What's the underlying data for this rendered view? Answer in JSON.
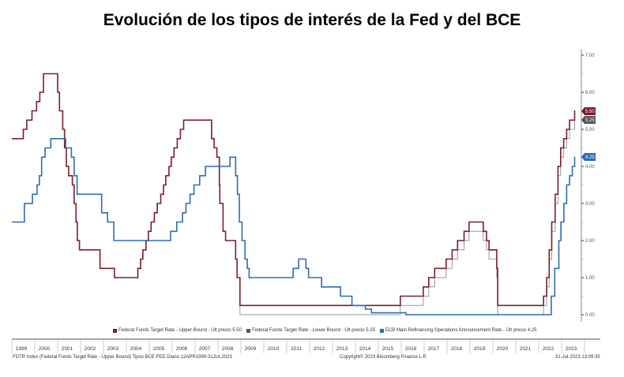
{
  "chart_data": {
    "type": "line",
    "title": "Evolución de los tipos de interés de la Fed y del BCE",
    "xlabel": "",
    "ylabel": "",
    "xlim": [
      1999.0,
      2023.6
    ],
    "ylim": [
      0,
      7
    ],
    "y_ticks": [
      "0.00",
      "1.00",
      "2.00",
      "3.00",
      "4.00",
      "5.00",
      "6.00",
      "7.00"
    ],
    "x_ticks": [
      "1999",
      "2000",
      "2001",
      "2002",
      "2003",
      "2004",
      "2005",
      "2006",
      "2007",
      "2008",
      "2009",
      "2010",
      "2011",
      "2012",
      "2013",
      "2014",
      "2015",
      "2016",
      "2017",
      "2018",
      "2019",
      "2020",
      "2021",
      "2022",
      "2023"
    ],
    "legend": [
      {
        "label": "Federal Funds Target Rate - Upper Bound - Últ precio 5.50",
        "color": "#7a1f2b"
      },
      {
        "label": "Federal Funds Target Rate - Lower Bound - Últ precio 5.25",
        "color": "#555555"
      },
      {
        "label": "ECB Main Refinancing Operations Announcement Rate - Últ precio 4.25",
        "color": "#2e6db4"
      }
    ],
    "last_values": [
      {
        "label": "5.50",
        "color": "#7a1f2b"
      },
      {
        "label": "5.25",
        "color": "#555555"
      },
      {
        "label": "4.25",
        "color": "#2e6db4"
      }
    ],
    "series": [
      {
        "name": "Federal Funds Target Rate - Upper Bound",
        "color": "#7a1f2b",
        "points": [
          [
            1999.0,
            4.75
          ],
          [
            1999.5,
            5.0
          ],
          [
            1999.65,
            5.25
          ],
          [
            1999.88,
            5.5
          ],
          [
            2000.08,
            5.75
          ],
          [
            2000.22,
            6.0
          ],
          [
            2000.38,
            6.5
          ],
          [
            2001.0,
            6.0
          ],
          [
            2001.08,
            5.5
          ],
          [
            2001.22,
            5.0
          ],
          [
            2001.3,
            4.5
          ],
          [
            2001.38,
            4.0
          ],
          [
            2001.48,
            3.75
          ],
          [
            2001.64,
            3.5
          ],
          [
            2001.72,
            3.0
          ],
          [
            2001.8,
            2.5
          ],
          [
            2001.86,
            2.0
          ],
          [
            2001.95,
            1.75
          ],
          [
            2002.85,
            1.25
          ],
          [
            2003.48,
            1.0
          ],
          [
            2004.5,
            1.25
          ],
          [
            2004.62,
            1.5
          ],
          [
            2004.72,
            1.75
          ],
          [
            2004.86,
            2.0
          ],
          [
            2004.96,
            2.25
          ],
          [
            2005.08,
            2.5
          ],
          [
            2005.22,
            2.75
          ],
          [
            2005.35,
            3.0
          ],
          [
            2005.5,
            3.25
          ],
          [
            2005.62,
            3.5
          ],
          [
            2005.72,
            3.75
          ],
          [
            2005.86,
            4.0
          ],
          [
            2005.96,
            4.25
          ],
          [
            2006.08,
            4.5
          ],
          [
            2006.22,
            4.75
          ],
          [
            2006.36,
            5.0
          ],
          [
            2006.5,
            5.25
          ],
          [
            2007.72,
            4.75
          ],
          [
            2007.83,
            4.5
          ],
          [
            2007.95,
            4.25
          ],
          [
            2008.06,
            3.5
          ],
          [
            2008.08,
            3.0
          ],
          [
            2008.22,
            2.25
          ],
          [
            2008.33,
            2.0
          ],
          [
            2008.77,
            1.5
          ],
          [
            2008.83,
            1.0
          ],
          [
            2008.96,
            0.25
          ],
          [
            2015.96,
            0.5
          ],
          [
            2016.96,
            0.75
          ],
          [
            2017.2,
            1.0
          ],
          [
            2017.46,
            1.25
          ],
          [
            2017.96,
            1.5
          ],
          [
            2018.22,
            1.75
          ],
          [
            2018.46,
            2.0
          ],
          [
            2018.74,
            2.25
          ],
          [
            2018.96,
            2.5
          ],
          [
            2019.58,
            2.25
          ],
          [
            2019.72,
            2.0
          ],
          [
            2019.83,
            1.75
          ],
          [
            2020.17,
            1.25
          ],
          [
            2020.21,
            0.25
          ],
          [
            2022.21,
            0.5
          ],
          [
            2022.35,
            1.0
          ],
          [
            2022.46,
            1.75
          ],
          [
            2022.57,
            2.5
          ],
          [
            2022.72,
            3.25
          ],
          [
            2022.84,
            4.0
          ],
          [
            2022.96,
            4.5
          ],
          [
            2023.09,
            4.75
          ],
          [
            2023.22,
            5.0
          ],
          [
            2023.35,
            5.25
          ],
          [
            2023.57,
            5.5
          ],
          [
            2023.58,
            5.5
          ]
        ]
      },
      {
        "name": "Federal Funds Target Rate - Lower Bound",
        "color": "#999999",
        "points": [
          [
            2008.96,
            0.0
          ],
          [
            2015.96,
            0.25
          ],
          [
            2016.96,
            0.5
          ],
          [
            2017.2,
            0.75
          ],
          [
            2017.46,
            1.0
          ],
          [
            2017.96,
            1.25
          ],
          [
            2018.22,
            1.5
          ],
          [
            2018.46,
            1.75
          ],
          [
            2018.74,
            2.0
          ],
          [
            2018.96,
            2.25
          ],
          [
            2019.58,
            2.0
          ],
          [
            2019.72,
            1.75
          ],
          [
            2019.83,
            1.5
          ],
          [
            2020.17,
            1.0
          ],
          [
            2020.21,
            0.0
          ],
          [
            2022.21,
            0.25
          ],
          [
            2022.35,
            0.75
          ],
          [
            2022.46,
            1.5
          ],
          [
            2022.57,
            2.25
          ],
          [
            2022.72,
            3.0
          ],
          [
            2022.84,
            3.75
          ],
          [
            2022.96,
            4.25
          ],
          [
            2023.09,
            4.5
          ],
          [
            2023.22,
            4.75
          ],
          [
            2023.35,
            5.0
          ],
          [
            2023.57,
            5.25
          ],
          [
            2023.58,
            5.25
          ]
        ]
      },
      {
        "name": "ECB Main Refinancing Operations Announcement Rate",
        "color": "#2e6db4",
        "points": [
          [
            1999.0,
            2.5
          ],
          [
            1999.55,
            3.0
          ],
          [
            1999.88,
            3.0
          ],
          [
            1999.9,
            3.25
          ],
          [
            2000.1,
            3.5
          ],
          [
            2000.2,
            3.75
          ],
          [
            2000.3,
            4.25
          ],
          [
            2000.45,
            4.5
          ],
          [
            2000.7,
            4.75
          ],
          [
            2001.35,
            4.5
          ],
          [
            2001.6,
            4.25
          ],
          [
            2001.72,
            3.75
          ],
          [
            2001.85,
            3.25
          ],
          [
            2002.92,
            2.75
          ],
          [
            2003.18,
            2.5
          ],
          [
            2003.45,
            2.0
          ],
          [
            2005.93,
            2.25
          ],
          [
            2006.2,
            2.5
          ],
          [
            2006.45,
            2.75
          ],
          [
            2006.6,
            3.0
          ],
          [
            2006.78,
            3.25
          ],
          [
            2006.95,
            3.5
          ],
          [
            2007.2,
            3.75
          ],
          [
            2007.45,
            4.0
          ],
          [
            2008.52,
            4.25
          ],
          [
            2008.77,
            3.75
          ],
          [
            2008.85,
            3.25
          ],
          [
            2008.93,
            2.5
          ],
          [
            2009.05,
            2.0
          ],
          [
            2009.18,
            1.5
          ],
          [
            2009.28,
            1.25
          ],
          [
            2009.36,
            1.0
          ],
          [
            2011.28,
            1.25
          ],
          [
            2011.52,
            1.5
          ],
          [
            2011.84,
            1.25
          ],
          [
            2011.95,
            1.0
          ],
          [
            2012.52,
            0.75
          ],
          [
            2013.35,
            0.5
          ],
          [
            2013.85,
            0.25
          ],
          [
            2014.43,
            0.15
          ],
          [
            2014.7,
            0.05
          ],
          [
            2016.2,
            0.0
          ],
          [
            2022.55,
            0.5
          ],
          [
            2022.7,
            1.25
          ],
          [
            2022.88,
            2.0
          ],
          [
            2022.97,
            2.5
          ],
          [
            2023.1,
            3.0
          ],
          [
            2023.22,
            3.5
          ],
          [
            2023.35,
            3.75
          ],
          [
            2023.47,
            4.0
          ],
          [
            2023.57,
            4.25
          ],
          [
            2023.58,
            4.25
          ]
        ]
      }
    ]
  },
  "footer": {
    "left": "FDTR Index (Federal Funds Target Rate - Upper Bound) Tipos BCE FED  Diario 12APR1999-31JUL2023",
    "center": "Copyright© 2023 Bloomberg Finance L.P.",
    "right": "31-Jul-2023 13:09:35"
  }
}
